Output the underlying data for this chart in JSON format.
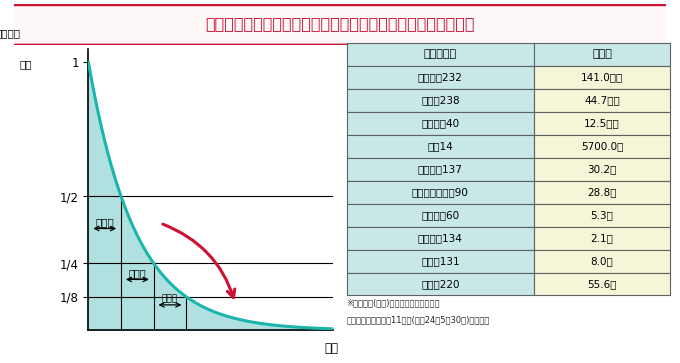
{
  "title": "放射能（放射線を出す能力）は、時間の経過とともに減少する",
  "ylabel_line1": "放射能の",
  "ylabel_line2": "強さ",
  "xlabel": "時間",
  "yticks": [
    "1",
    "1/2",
    "1/4",
    "1/8"
  ],
  "ytick_vals": [
    1.0,
    0.5,
    0.25,
    0.125
  ],
  "halflife_label": "半減期",
  "curve_color": "#1ab5ad",
  "fill_color": "#a8dedd",
  "arrow_color": "#cc1133",
  "title_border": "#cc1133",
  "title_text_color": "#cc1133",
  "title_fill": "#fff8f8",
  "table_header_bg": "#c8e8e8",
  "table_left_bg": "#c8e8e8",
  "table_right_bg": "#f5f5d8",
  "table_col_header": [
    "放射性物質",
    "半減期"
  ],
  "table_rows": [
    [
      "トリウム232",
      "141.0億年"
    ],
    [
      "ウラン238",
      "44.7億年"
    ],
    [
      "カリウム40",
      "12.5億年"
    ],
    [
      "炭素14",
      "5700.0年"
    ],
    [
      "セシウム137",
      "30.2年"
    ],
    [
      "ストロンチウム90",
      "28.8年"
    ],
    [
      "コバルト60",
      "5.3年"
    ],
    [
      "セシウム134",
      "2.1年"
    ],
    [
      "ヨウ素131",
      "8.0日"
    ],
    [
      "ラドン220",
      "55.6秒"
    ]
  ],
  "footnote1": "※数値は、(公社)日本アイソトープ協会",
  "footnote2": "「アイソトープ手帳11版」(平成24年5月30日)による。",
  "bg_color": "#ffffff"
}
